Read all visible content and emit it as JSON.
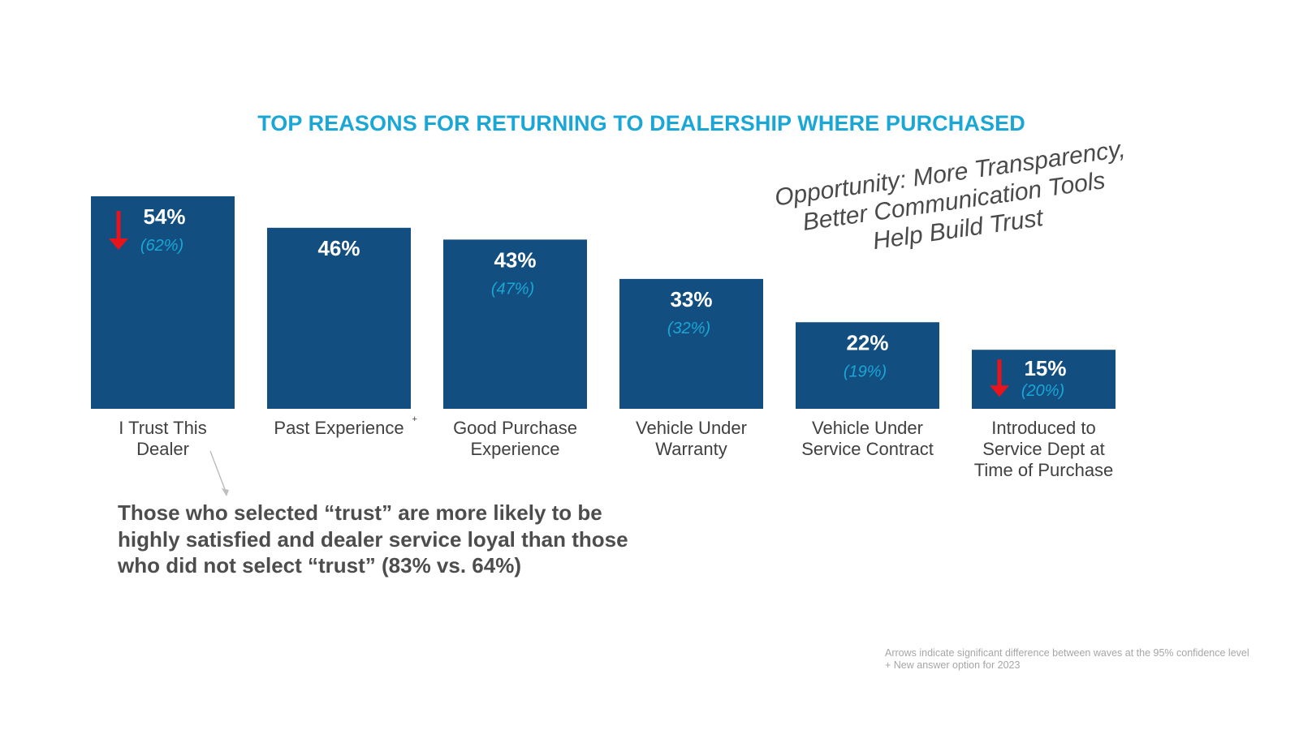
{
  "chart_data": {
    "type": "bar",
    "title": "TOP REASONS FOR RETURNING TO DEALERSHIP WHERE PURCHASED",
    "categories": [
      "I Trust This Dealer",
      "Past Experience",
      "Good Purchase Experience",
      "Vehicle Under Warranty",
      "Vehicle Under Service Contract",
      "Introduced to Service Dept at Time of Purchase"
    ],
    "values": [
      54,
      46,
      43,
      33,
      22,
      15
    ],
    "value_labels": [
      "54%",
      "46%",
      "43%",
      "33%",
      "22%",
      "15%"
    ],
    "prior_labels": [
      "(62%)",
      "",
      "(47%)",
      "(32%)",
      "(19%)",
      "(20%)"
    ],
    "category_marks": [
      "",
      "+",
      "",
      "",
      "",
      ""
    ],
    "significant_decrease": [
      true,
      false,
      false,
      false,
      false,
      true
    ],
    "ylim": [
      0,
      54
    ],
    "bar_color": "#124e80",
    "prior_color": "#1aa7d6",
    "arrow_color": "#e8141c"
  },
  "annotation": "Opportunity: More Transparency, Better Communication Tools Help Build Trust",
  "callout": "Those who selected “trust” are more likely to be highly satisfied and dealer service loyal than those who did not select “trust” (83% vs. 64%)",
  "footnotes": [
    "Arrows indicate significant difference between waves at the 95% confidence level",
    "+ New answer option for 2023"
  ]
}
